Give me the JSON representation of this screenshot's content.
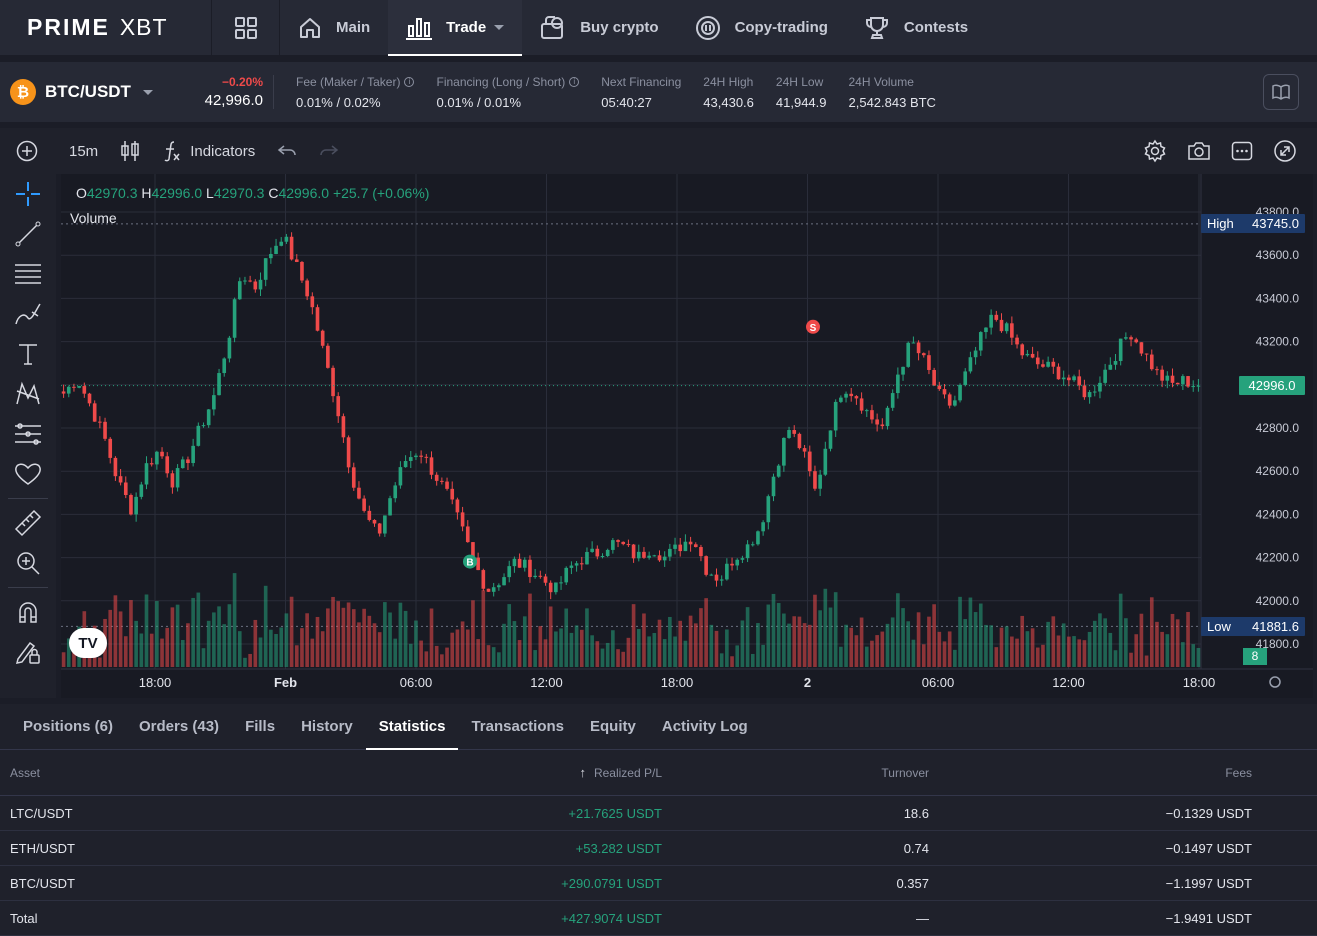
{
  "brand": {
    "logo_main": "PRIME",
    "logo_sub": "XBT"
  },
  "nav": {
    "items": [
      {
        "label": "Main",
        "icon": "home-icon"
      },
      {
        "label": "Trade",
        "icon": "bar-chart-icon",
        "active": true
      },
      {
        "label": "Buy crypto",
        "icon": "wallet-coin-icon"
      },
      {
        "label": "Copy-trading",
        "icon": "copy-trading-icon"
      },
      {
        "label": "Contests",
        "icon": "trophy-icon"
      }
    ]
  },
  "ticker": {
    "coin_glyph": "₿",
    "pair": "BTC/USDT",
    "change": "−0.20%",
    "price": "42,996.0",
    "stats": [
      {
        "label": "Fee (Maker / Taker)",
        "value": "0.01% / 0.02%",
        "info": true
      },
      {
        "label": "Financing (Long / Short)",
        "value": "0.01% / 0.01%",
        "info": true
      },
      {
        "label": "Next Financing",
        "value": "05:40:27"
      },
      {
        "label": "24H High",
        "value": "43,430.6"
      },
      {
        "label": "24H Low",
        "value": "41,944.9"
      },
      {
        "label": "24H Volume",
        "value": "2,542.843 BTC"
      }
    ]
  },
  "chart_toolbar": {
    "interval": "15m",
    "indicators": "Indicators"
  },
  "chart": {
    "ohlc": {
      "o_label": "O",
      "o": "42970.3",
      "h_label": "H",
      "h": "42996.0",
      "l_label": "L",
      "l": "42970.3",
      "c_label": "C",
      "c": "42996.0",
      "change": "+25.7 (+0.06%)"
    },
    "volume_label": "Volume",
    "tv_logo": "TV",
    "high_badge": {
      "label": "High",
      "value": "43745.0"
    },
    "low_badge": {
      "label": "Low",
      "value": "41881.6"
    },
    "current_price_badge": "42996.0",
    "volume_count": "8",
    "markers": {
      "buy": "B",
      "sell": "S"
    },
    "colors": {
      "up": "#26a27c",
      "down": "#ef4a4a",
      "bg": "#181a23",
      "grid": "#2a2d3a"
    }
  },
  "chart_data": {
    "type": "candlestick",
    "interval": "15m",
    "y_ticks": [
      43800,
      43600,
      43400,
      43200,
      43000,
      42800,
      42600,
      42400,
      42200,
      42000,
      41800
    ],
    "y_tick_labels": [
      "43800.0",
      "43600.0",
      "43400.0",
      "43200.0",
      "43000.0",
      "42800.0",
      "42600.0",
      "42400.0",
      "42200.0",
      "42000.0",
      "41800.0"
    ],
    "ylim": [
      41800,
      43800
    ],
    "x_tick_labels": [
      "18:00",
      "Feb",
      "06:00",
      "12:00",
      "18:00",
      "2",
      "06:00",
      "12:00",
      "18:00"
    ],
    "close_path": [
      42960,
      43030,
      42900,
      42750,
      42550,
      42420,
      42620,
      42700,
      42550,
      42650,
      42800,
      42950,
      43200,
      43520,
      43450,
      43600,
      43700,
      43550,
      43400,
      43150,
      42900,
      42600,
      42400,
      42300,
      42500,
      42650,
      42700,
      42600,
      42500,
      42350,
      42180,
      42050,
      42100,
      42180,
      42150,
      42100,
      42050,
      42150,
      42200,
      42220,
      42270,
      42250,
      42200,
      42250,
      42200,
      42250,
      42300,
      42150,
      42100,
      42200,
      42250,
      42350,
      42600,
      42800,
      42700,
      42500,
      42800,
      43000,
      42950,
      42850,
      42800,
      43050,
      43200,
      43100,
      42950,
      42900,
      43050,
      43200,
      43320,
      43250,
      43150,
      43100,
      43080,
      43050,
      43000,
      42950,
      43050,
      43150,
      43250,
      43150,
      43050,
      43000,
      43020,
      42996
    ],
    "current_price": 42996.0,
    "high": 43745.0,
    "low": 41881.6
  },
  "bottom": {
    "tabs": [
      {
        "label": "Positions (6)"
      },
      {
        "label": "Orders (43)"
      },
      {
        "label": "Fills"
      },
      {
        "label": "History"
      },
      {
        "label": "Statistics",
        "active": true
      },
      {
        "label": "Transactions"
      },
      {
        "label": "Equity"
      },
      {
        "label": "Activity Log"
      }
    ],
    "columns": {
      "asset": "Asset",
      "pnl": "Realized P/L",
      "turnover": "Turnover",
      "fees": "Fees"
    },
    "rows": [
      {
        "asset": "LTC/USDT",
        "pnl": "+21.7625 USDT",
        "turnover": "18.6",
        "fees": "−0.1329 USDT"
      },
      {
        "asset": "ETH/USDT",
        "pnl": "+53.282 USDT",
        "turnover": "0.74",
        "fees": "−0.1497 USDT"
      },
      {
        "asset": "BTC/USDT",
        "pnl": "+290.0791 USDT",
        "turnover": "0.357",
        "fees": "−1.1997 USDT"
      },
      {
        "asset": "Total",
        "pnl": "+427.9074 USDT",
        "turnover": "—",
        "fees": "−1.9491 USDT"
      }
    ]
  }
}
